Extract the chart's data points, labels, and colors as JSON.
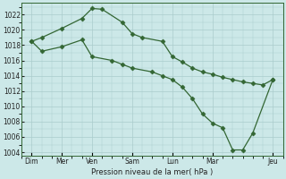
{
  "background_color": "#cce8e8",
  "grid_color": "#aacccc",
  "line_color": "#336633",
  "marker_color": "#336633",
  "xlabel_text": "Pression niveau de la mer( hPa )",
  "ylim": [
    1003.5,
    1023.5
  ],
  "yticks": [
    1004,
    1006,
    1008,
    1010,
    1012,
    1014,
    1016,
    1018,
    1020,
    1022
  ],
  "xlim": [
    0,
    13
  ],
  "xtick_positions": [
    0.5,
    2,
    3.5,
    5.5,
    7.5,
    9.5,
    12.5
  ],
  "xtick_labels": [
    "Dim",
    "Mer",
    "Ven",
    "Sam",
    "Lun",
    "Mar",
    "Jeu"
  ],
  "series1_x": [
    0.5,
    1.0,
    2.0,
    3.0,
    3.5,
    4.0,
    5.0,
    5.5,
    6.0,
    7.0,
    7.5,
    8.0,
    8.5,
    9.0,
    9.5,
    10.0,
    10.5,
    11.0,
    11.5,
    12.0,
    12.5
  ],
  "series1_y": [
    1018.5,
    1019.0,
    1020.2,
    1021.5,
    1022.8,
    1022.7,
    1021.0,
    1019.5,
    1019.0,
    1018.5,
    1016.5,
    1015.8,
    1015.0,
    1014.5,
    1014.2,
    1013.8,
    1013.5,
    1013.2,
    1013.0,
    1012.8,
    1013.5
  ],
  "series2_x": [
    0.5,
    1.0,
    2.0,
    3.0,
    3.5,
    4.5,
    5.0,
    5.5,
    6.5,
    7.0,
    7.5,
    8.0,
    8.5,
    9.0,
    9.5,
    10.0,
    10.5,
    11.0,
    11.5,
    12.5
  ],
  "series2_y": [
    1018.5,
    1017.2,
    1017.8,
    1018.7,
    1016.5,
    1016.0,
    1015.5,
    1015.0,
    1014.5,
    1014.0,
    1013.5,
    1012.5,
    1011.0,
    1009.0,
    1007.8,
    1007.2,
    1004.3,
    1004.3,
    1006.5,
    1013.5
  ]
}
